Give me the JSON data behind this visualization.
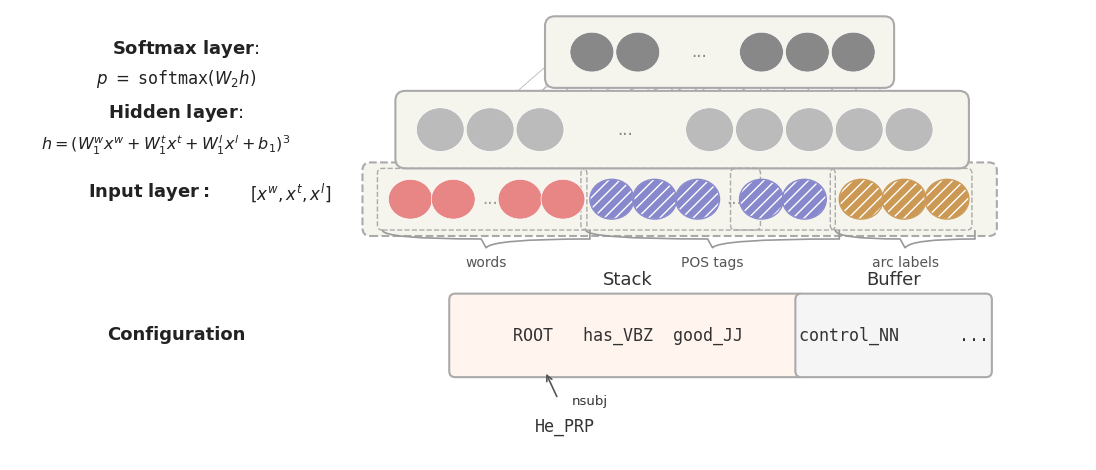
{
  "fig_width": 10.96,
  "fig_height": 4.7,
  "bg_color": "#ffffff",
  "softmax_title": "Softmax layer:",
  "softmax_eq": "$p\\ =\\ \\mathtt{softmax}(W_2 h)$",
  "hidden_title": "Hidden layer:",
  "hidden_eq": "$h = (W_1^w x^w + W_1^t x^t + W_1^l x^l + b_1)^3$",
  "input_label_bold": "$\\mathbf{Input\\ layer:}$",
  "input_eq": "$[x^w, x^t, x^l]$",
  "stack_label": "Stack",
  "buffer_label": "Buffer",
  "config_label": "Configuration",
  "stack_content": "ROOT   has_VBZ  good_JJ",
  "buffer_content": "control_NN      ...",
  "dep_label": "nsubj",
  "dep_word": "He_PRP",
  "words_label": "words",
  "pos_label": "POS tags",
  "arc_label": "arc labels",
  "nn_box_color": "#f5f5ee",
  "nn_border_color": "#aaaaaa",
  "pink_color": "#e88585",
  "blue_color": "#8888cc",
  "orange_color": "#cc9955",
  "dark_gray_node": "#888888",
  "light_gray_node": "#bbbbbb",
  "stack_box_color": "#fff5ee",
  "buffer_box_color": "#f5f5f5",
  "arrow_color": "#aaaaaa",
  "brace_color": "#999999"
}
